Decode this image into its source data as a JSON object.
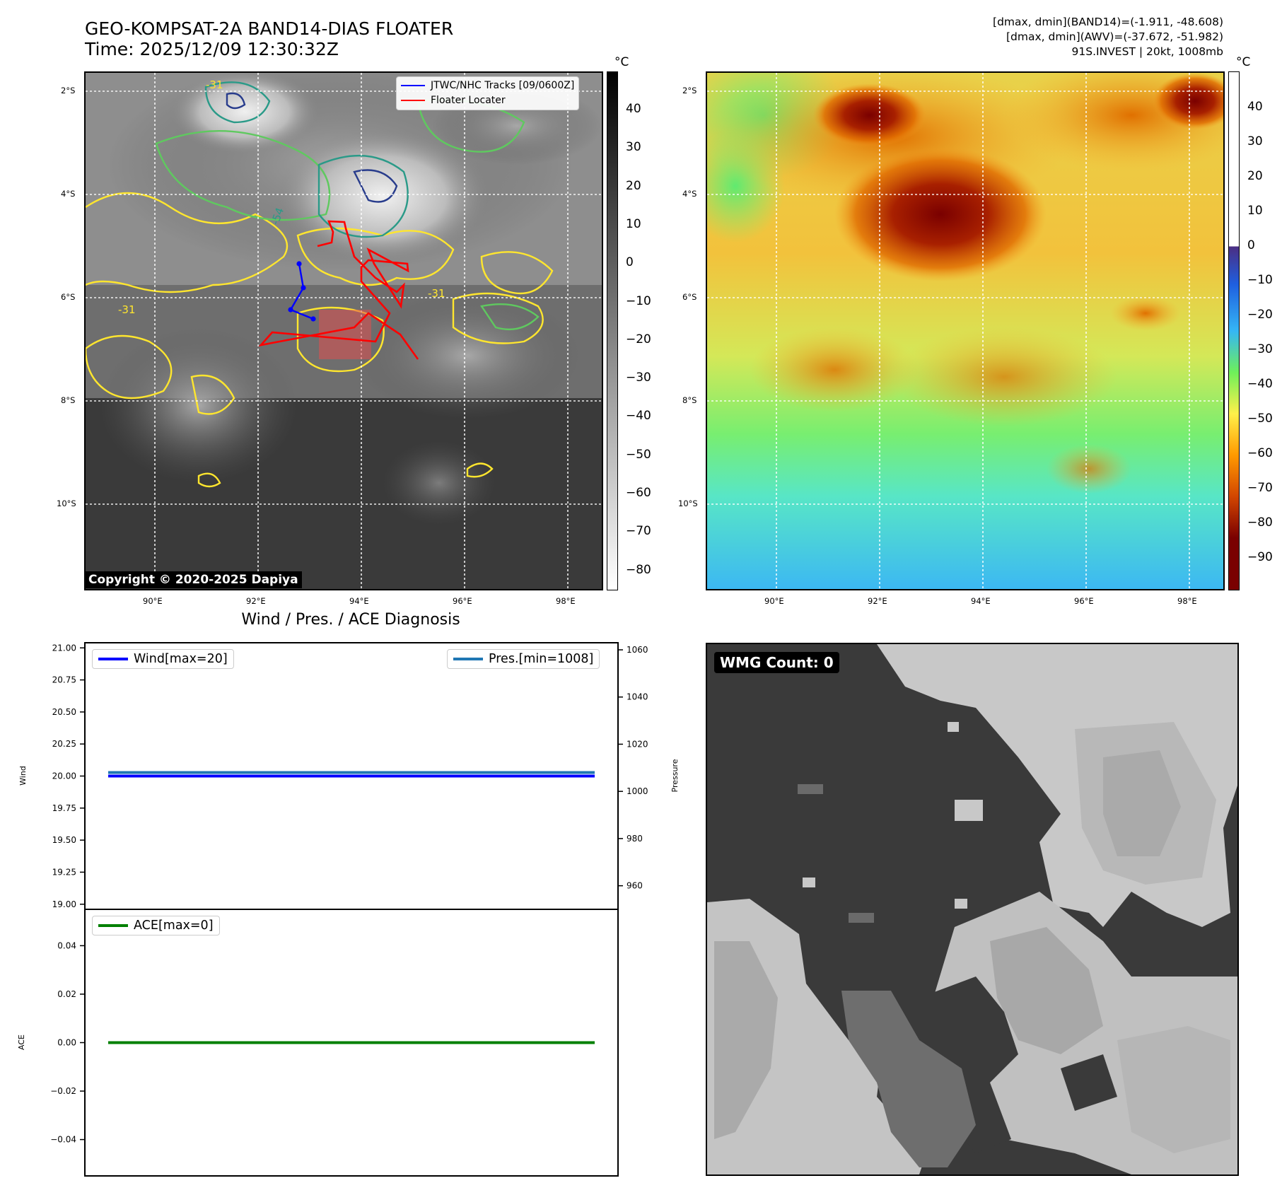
{
  "header": {
    "title_line1": "GEO-KOMPSAT-2A BAND14-DIAS FLOATER",
    "title_line2": "Time: 2025/12/09 12:30:32Z",
    "info_line1": "[dmax, dmin](BAND14)=(-1.911, -48.608)",
    "info_line2": "[dmax, dmin](AWV)=(-37.672, -51.982)",
    "info_line3": "91S.INVEST | 20kt, 1008mb"
  },
  "map_axes": {
    "lat_labels": [
      "2°S",
      "4°S",
      "6°S",
      "8°S",
      "10°S"
    ],
    "lon_labels": [
      "90°E",
      "92°E",
      "94°E",
      "96°E",
      "98°E"
    ]
  },
  "ir_panel": {
    "legend": [
      "JTWC/NHC Tracks [09/0600Z]",
      "Floater Locater"
    ],
    "copyright": "Copyright © 2020-2025 Dapiya",
    "contour_labels": [
      "-31",
      "-54"
    ],
    "colorbar": {
      "unit": "°C",
      "ticks": [
        "40",
        "30",
        "20",
        "10",
        "0",
        "−10",
        "−20",
        "−30",
        "−40",
        "−50",
        "−60",
        "−70",
        "−80"
      ],
      "colors": {
        "top": "#000000",
        "bottom": "#ffffff"
      }
    },
    "colors": {
      "track": "#0000ff",
      "floater": "#ff0000",
      "contour_yellow": "#ffe62e",
      "contour_green": "#5fc95f",
      "contour_teal": "#2a9a88",
      "contour_navy": "#283c8c"
    }
  },
  "wv_panel": {
    "colorbar": {
      "unit": "°C",
      "ticks": [
        "40",
        "30",
        "20",
        "10",
        "0",
        "−10",
        "−20",
        "−30",
        "−40",
        "−50",
        "−60",
        "−70",
        "−80",
        "−90"
      ],
      "colors": [
        "#ffffff",
        "#4b2e83",
        "#1f5fe0",
        "#35b6f5",
        "#6ef05a",
        "#fff04a",
        "#ff9a00",
        "#d24600",
        "#7a0000"
      ]
    }
  },
  "diagnosis_title": "Wind / Pres. / ACE Diagnosis",
  "wmg_panel": {
    "count_label": "WMG Count: 0"
  },
  "chart_data": [
    {
      "type": "line",
      "title": "Wind / Pres. / ACE Diagnosis",
      "ylabel": "Wind",
      "ylabel_right": "Pressure",
      "ylim": [
        18.96,
        21.04
      ],
      "ylim_right": [
        950,
        1063
      ],
      "yticks": [
        "21.00",
        "20.75",
        "20.50",
        "20.25",
        "20.00",
        "19.75",
        "19.50",
        "19.25",
        "19.00"
      ],
      "yticks_right": [
        "1060",
        "1040",
        "1020",
        "1000",
        "980",
        "960"
      ],
      "series": [
        {
          "name": "Wind[max=20]",
          "axis": "left",
          "color": "#0000ff",
          "values": [
            20,
            20
          ]
        },
        {
          "name": "Pres.[min=1008]",
          "axis": "right",
          "color": "#1f77b4",
          "values": [
            1008,
            1008
          ]
        }
      ]
    },
    {
      "type": "line",
      "ylabel": "ACE",
      "ylim": [
        -0.055,
        0.055
      ],
      "yticks": [
        "0.04",
        "0.02",
        "0.00",
        "−0.02",
        "−0.04"
      ],
      "series": [
        {
          "name": "ACE[max=0]",
          "color": "#008000",
          "values": [
            0,
            0
          ]
        }
      ]
    }
  ]
}
